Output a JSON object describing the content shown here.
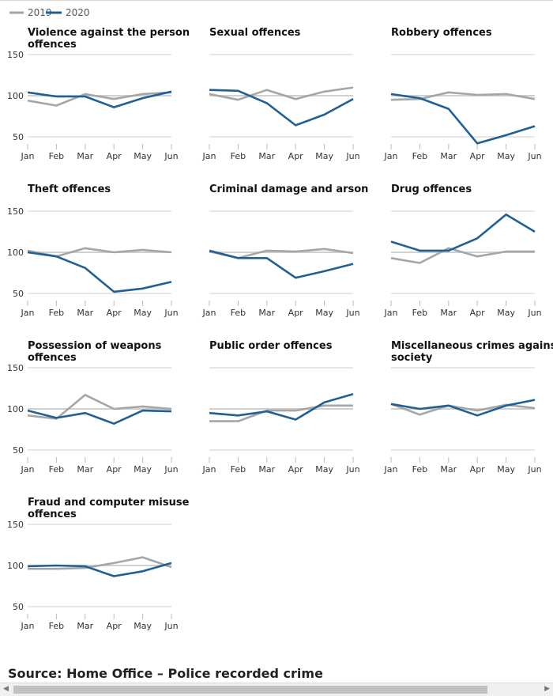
{
  "legend": [
    {
      "label": "2019",
      "color": "#a6a6a6"
    },
    {
      "label": "2020",
      "color": "#206095"
    }
  ],
  "source": "Source: Home Office – Police recorded crime",
  "chart_data": {
    "type": "line",
    "layout": "small-multiples",
    "x": [
      "Jan",
      "Feb",
      "Mar",
      "Apr",
      "May",
      "Jun"
    ],
    "ylim": [
      50,
      150
    ],
    "yticks": [
      50,
      100,
      150
    ],
    "grid": true,
    "legend_position": "top-left",
    "panels": [
      {
        "title": [
          "Violence against the person",
          "offences"
        ],
        "series": [
          {
            "name": "2019",
            "values": [
              94,
              88,
              102,
              96,
              102,
              104
            ]
          },
          {
            "name": "2020",
            "values": [
              104,
              99,
              99,
              86,
              97,
              105
            ]
          }
        ]
      },
      {
        "title": [
          "Sexual offences"
        ],
        "series": [
          {
            "name": "2019",
            "values": [
              102,
              95,
              107,
              96,
              105,
              110
            ]
          },
          {
            "name": "2020",
            "values": [
              107,
              106,
              91,
              64,
              77,
              96
            ]
          }
        ]
      },
      {
        "title": [
          "Robbery offences"
        ],
        "series": [
          {
            "name": "2019",
            "values": [
              95,
              96,
              104,
              101,
              102,
              96
            ]
          },
          {
            "name": "2020",
            "values": [
              102,
              97,
              84,
              42,
              52,
              63
            ]
          }
        ]
      },
      {
        "title": [
          "Theft offences"
        ],
        "series": [
          {
            "name": "2019",
            "values": [
              102,
              95,
              105,
              100,
              103,
              100
            ]
          },
          {
            "name": "2020",
            "values": [
              100,
              95,
              81,
              52,
              56,
              64
            ]
          }
        ]
      },
      {
        "title": [
          "Criminal damage and arson"
        ],
        "series": [
          {
            "name": "2019",
            "values": [
              101,
              93,
              102,
              101,
              104,
              99
            ]
          },
          {
            "name": "2020",
            "values": [
              102,
              93,
              93,
              69,
              77,
              86
            ]
          }
        ]
      },
      {
        "title": [
          "Drug offences"
        ],
        "series": [
          {
            "name": "2019",
            "values": [
              93,
              87,
              105,
              95,
              101,
              101
            ]
          },
          {
            "name": "2020",
            "values": [
              113,
              102,
              102,
              117,
              146,
              125
            ]
          }
        ]
      },
      {
        "title": [
          "Possession of weapons",
          "offences"
        ],
        "series": [
          {
            "name": "2019",
            "values": [
              92,
              88,
              117,
              100,
              103,
              100
            ]
          },
          {
            "name": "2020",
            "values": [
              98,
              89,
              95,
              82,
              98,
              97
            ]
          }
        ]
      },
      {
        "title": [
          "Public order offences"
        ],
        "series": [
          {
            "name": "2019",
            "values": [
              85,
              85,
              98,
              98,
              104,
              104
            ]
          },
          {
            "name": "2020",
            "values": [
              95,
              92,
              97,
              87,
              108,
              118
            ]
          }
        ]
      },
      {
        "title": [
          "Miscellaneous crimes against",
          "society"
        ],
        "series": [
          {
            "name": "2019",
            "values": [
              106,
              93,
              104,
              98,
              105,
              101
            ]
          },
          {
            "name": "2020",
            "values": [
              106,
              100,
              104,
              92,
              104,
              111
            ]
          }
        ]
      },
      {
        "title": [
          "Fraud and computer misuse",
          "offences"
        ],
        "series": [
          {
            "name": "2019",
            "values": [
              96,
              96,
              97,
              103,
              110,
              98
            ]
          },
          {
            "name": "2020",
            "values": [
              99,
              100,
              99,
              87,
              93,
              103
            ]
          }
        ]
      }
    ]
  }
}
